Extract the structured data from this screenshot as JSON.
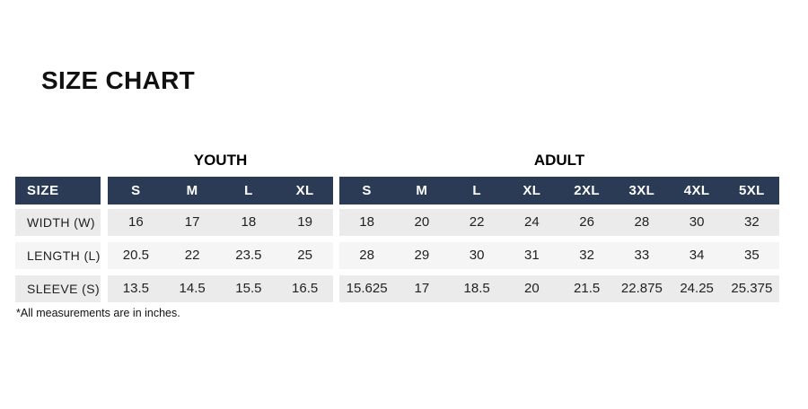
{
  "chart_data": {
    "type": "table",
    "title": "SIZE CHART",
    "corner_header": "SIZE",
    "column_groups": [
      {
        "label": "YOUTH",
        "columns": [
          "S",
          "M",
          "L",
          "XL"
        ]
      },
      {
        "label": "ADULT",
        "columns": [
          "S",
          "M",
          "L",
          "XL",
          "2XL",
          "3XL",
          "4XL",
          "5XL"
        ]
      }
    ],
    "rows": [
      {
        "label": "WIDTH (W)",
        "youth_values": [
          16,
          17,
          18,
          19
        ],
        "adult_values": [
          18,
          20,
          22,
          24,
          26,
          28,
          30,
          32
        ]
      },
      {
        "label": "LENGTH (L)",
        "youth_values": [
          20.5,
          22,
          23.5,
          25
        ],
        "adult_values": [
          28,
          29,
          30,
          31,
          32,
          33,
          34,
          35
        ]
      },
      {
        "label": "SLEEVE (S)",
        "youth_values": [
          13.5,
          14.5,
          15.5,
          16.5
        ],
        "adult_values": [
          15.625,
          17,
          18.5,
          20,
          21.5,
          22.875,
          24.25,
          25.375
        ]
      }
    ],
    "footnote": "*All measurements are in inches.",
    "units": "inches"
  },
  "colors": {
    "header_bg": "#2b3a55",
    "header_text": "#ffffff",
    "row_bg": "#ebebeb",
    "row_alt_bg": "#f5f5f5",
    "body_text": "#222222",
    "title_text": "#111111"
  }
}
